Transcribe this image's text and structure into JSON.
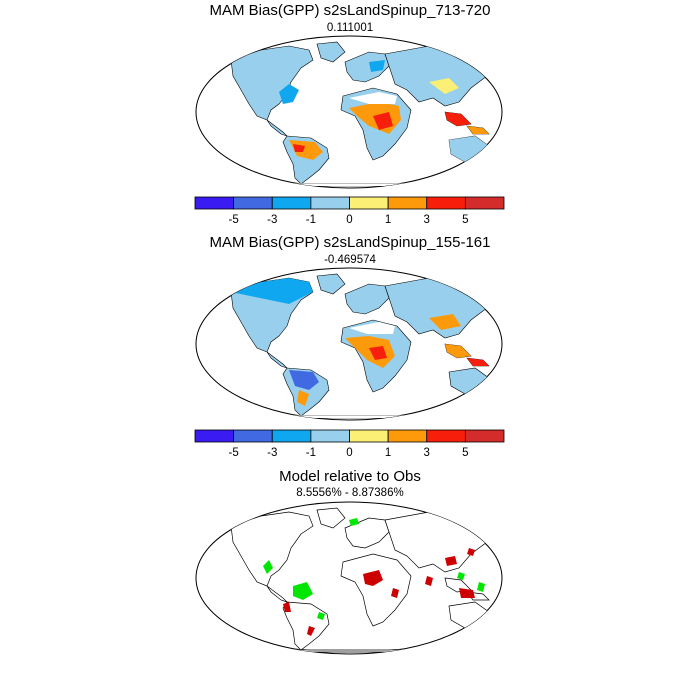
{
  "panels": [
    {
      "title": "MAM Bias(GPP) s2sLandSpinup_713-720",
      "subtitle": "0.111001"
    },
    {
      "title": "MAM Bias(GPP) s2sLandSpinup_155-161",
      "subtitle": "-0.469574"
    },
    {
      "title": "Model relative to Obs",
      "subtitle": "8.5556% - 8.87386%"
    }
  ],
  "colorbar": {
    "labels": [
      "-5",
      "-3",
      "-1",
      "0",
      "1",
      "3",
      "5"
    ],
    "colors": [
      "#3a1cf2",
      "#4169e1",
      "#0fa8f0",
      "#98cfec",
      "#fbf075",
      "#fc9a0c",
      "#f81e0c",
      "#d42b2b"
    ]
  },
  "legend_colors": {
    "higher": "#00e600",
    "lower": "#cc0000"
  }
}
